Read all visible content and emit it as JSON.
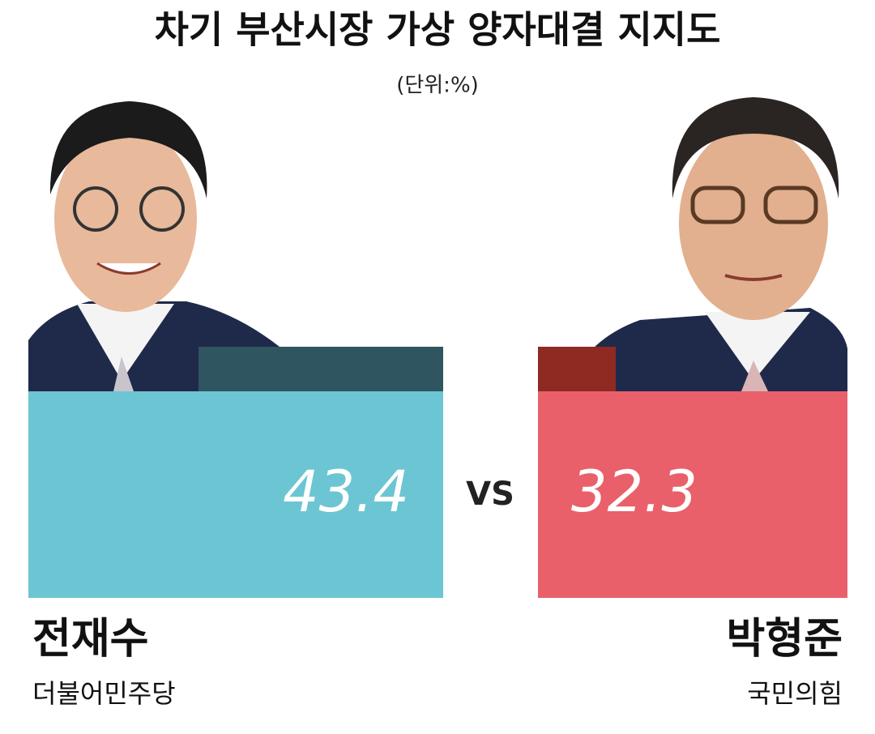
{
  "header": {
    "title": "차기 부산시장 가상 양자대결 지지도",
    "unit": "(단위:%)"
  },
  "versus": "VS",
  "candidates": [
    {
      "name": "전재수",
      "party": "더불어민주당",
      "value": 43.4,
      "color": "#6cc5d3",
      "accent": "#2f5560"
    },
    {
      "name": "박형준",
      "party": "국민의힘",
      "value": 32.3,
      "color": "#e9606a",
      "accent": "#8e2a22"
    }
  ]
}
